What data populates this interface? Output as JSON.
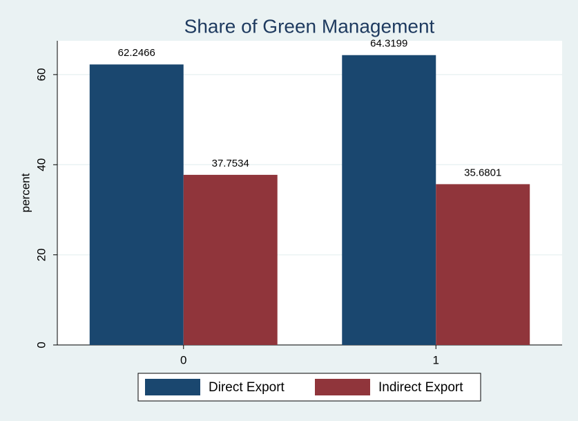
{
  "chart_data": {
    "type": "bar",
    "title": "Share of Green Management",
    "y_label": "percent",
    "categories": [
      "0",
      "1"
    ],
    "series": [
      {
        "name": "Direct Export",
        "color": "#1a476f",
        "values": [
          62.2466,
          64.3199
        ]
      },
      {
        "name": "Indirect Export",
        "color": "#90353b",
        "values": [
          37.7534,
          35.6801
        ]
      }
    ],
    "ylim": [
      0,
      67.5
    ],
    "yticks": [
      0,
      20,
      40,
      60
    ],
    "grid": true,
    "legend": "bottom"
  }
}
